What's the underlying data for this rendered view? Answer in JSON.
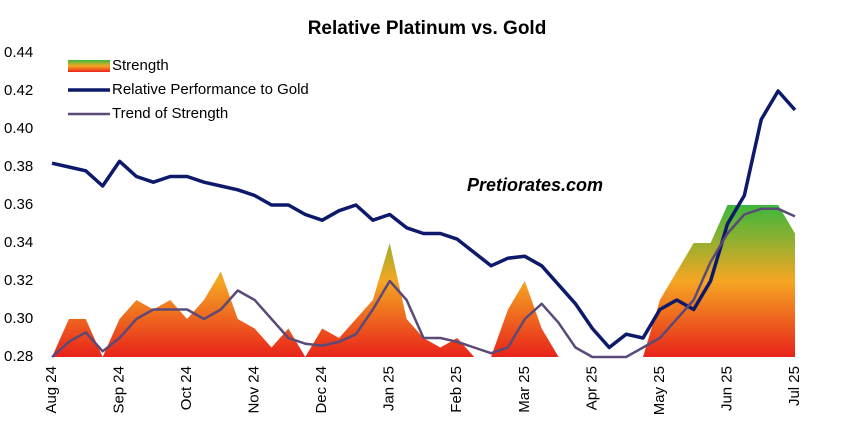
{
  "chart_data": {
    "type": "line",
    "title": "Relative Platinum vs. Gold",
    "annotation": "Pretiorates.com",
    "x": [
      0,
      0.25,
      0.5,
      0.75,
      1,
      1.25,
      1.5,
      1.75,
      2,
      2.25,
      2.5,
      2.75,
      3,
      3.25,
      3.5,
      3.75,
      4,
      4.25,
      4.5,
      4.75,
      5,
      5.25,
      5.5,
      5.75,
      6,
      6.25,
      6.5,
      6.75,
      7,
      7.25,
      7.5,
      7.75,
      8,
      8.25,
      8.5,
      8.75,
      9,
      9.25,
      9.5,
      9.75,
      10,
      10.25,
      10.5,
      10.75,
      11
    ],
    "xlim": [
      0,
      11
    ],
    "xticks": [
      {
        "value": 0,
        "label": "Aug 24"
      },
      {
        "value": 1,
        "label": "Sep 24"
      },
      {
        "value": 2,
        "label": "Oct 24"
      },
      {
        "value": 3,
        "label": "Nov 24"
      },
      {
        "value": 4,
        "label": "Dec 24"
      },
      {
        "value": 5,
        "label": "Jan 25"
      },
      {
        "value": 6,
        "label": "Feb 25"
      },
      {
        "value": 7,
        "label": "Mar 25"
      },
      {
        "value": 8,
        "label": "Apr 25"
      },
      {
        "value": 9,
        "label": "May 25"
      },
      {
        "value": 10,
        "label": "Jun 25"
      },
      {
        "value": 11,
        "label": "Jul 25"
      }
    ],
    "ylim": [
      0.28,
      0.44
    ],
    "yticks": [
      0.28,
      {
        "value": 0.3,
        "label": "0.30"
      },
      0.32,
      0.34,
      0.36,
      0.38,
      {
        "value": 0.4,
        "label": "0.40"
      },
      0.42,
      0.44
    ],
    "grid": false,
    "legend": "top-left",
    "series": [
      {
        "name": "Strength",
        "kind": "area",
        "colors": [
          "#3cb83c",
          "#f5a623",
          "#e8231b"
        ],
        "values": [
          0.28,
          0.3,
          0.3,
          0.28,
          0.3,
          0.31,
          0.305,
          0.31,
          0.3,
          0.31,
          0.325,
          0.3,
          0.295,
          0.285,
          0.295,
          0.28,
          0.295,
          0.29,
          0.3,
          0.31,
          0.34,
          0.3,
          0.29,
          0.285,
          0.29,
          0.28,
          0.28,
          0.305,
          0.32,
          0.295,
          0.28,
          0.28,
          0.28,
          0.28,
          0.28,
          0.28,
          0.31,
          0.325,
          0.34,
          0.34,
          0.36,
          0.36,
          0.36,
          0.36,
          0.345
        ]
      },
      {
        "name": "Relative Performance to Gold",
        "kind": "line",
        "color": "#0d1a6b",
        "width": 3.5,
        "values": [
          0.382,
          0.38,
          0.378,
          0.37,
          0.383,
          0.375,
          0.372,
          0.375,
          0.375,
          0.372,
          0.37,
          0.368,
          0.365,
          0.36,
          0.36,
          0.355,
          0.352,
          0.357,
          0.36,
          0.352,
          0.355,
          0.348,
          0.345,
          0.345,
          0.342,
          0.335,
          0.328,
          0.332,
          0.333,
          0.328,
          0.318,
          0.308,
          0.295,
          0.285,
          0.292,
          0.29,
          0.305,
          0.31,
          0.305,
          0.32,
          0.35,
          0.365,
          0.405,
          0.42,
          0.41
        ]
      },
      {
        "name": "Trend of Strength",
        "kind": "line",
        "color": "#5b4a78",
        "width": 2.5,
        "values": [
          0.28,
          0.288,
          0.293,
          0.283,
          0.29,
          0.3,
          0.305,
          0.305,
          0.305,
          0.3,
          0.305,
          0.315,
          0.31,
          0.3,
          0.29,
          0.287,
          0.286,
          0.288,
          0.292,
          0.305,
          0.32,
          0.31,
          0.29,
          0.29,
          0.288,
          0.285,
          0.282,
          0.285,
          0.3,
          0.308,
          0.298,
          0.285,
          0.28,
          0.28,
          0.28,
          0.285,
          0.29,
          0.3,
          0.31,
          0.33,
          0.345,
          0.355,
          0.358,
          0.358,
          0.354
        ]
      }
    ]
  }
}
